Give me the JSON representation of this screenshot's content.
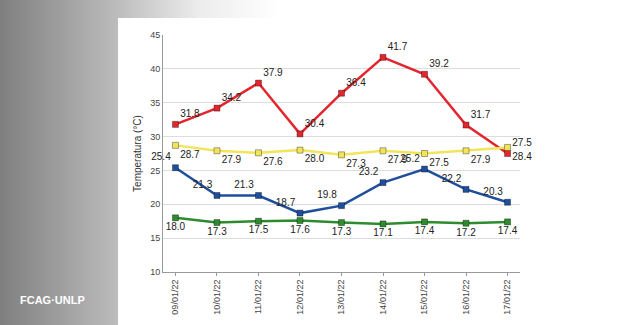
{
  "chart_data": {
    "type": "line",
    "ylabel": "Temperatura (°C)",
    "categories": [
      "09/01/22",
      "10/01/22",
      "11/01/22",
      "12/01/22",
      "13/01/22",
      "14/01/22",
      "15/01/22",
      "16/01/22",
      "17/01/22"
    ],
    "series": [
      {
        "color": "#e3262e",
        "values": [
          31.8,
          34.2,
          37.9,
          30.4,
          36.4,
          41.7,
          39.2,
          31.7,
          27.5
        ]
      },
      {
        "color": "#f2e55c",
        "values": [
          28.7,
          27.9,
          27.6,
          28.0,
          27.3,
          27.9,
          27.5,
          27.9,
          28.4
        ],
        "value_labels": [
          "28.7",
          "27.9",
          "27.6",
          "28.0",
          "27.3",
          "27.9",
          "27.5",
          "27.9",
          "28.4"
        ]
      },
      {
        "color": "#1f4f9c",
        "values": [
          25.4,
          21.3,
          21.3,
          18.7,
          19.8,
          23.2,
          25.2,
          22.2,
          20.3
        ]
      },
      {
        "color": "#2e8b2e",
        "values": [
          18.0,
          17.3,
          17.5,
          17.6,
          17.3,
          17.1,
          17.4,
          17.2,
          17.4
        ],
        "value_labels": [
          "18.0",
          "17.3",
          "17.5",
          "17.6",
          "17.3",
          "17.1",
          "17.4",
          "17.2",
          "17.4"
        ]
      }
    ],
    "ylim": [
      10,
      45
    ],
    "yticks": [
      10,
      15,
      20,
      25,
      30,
      35,
      40,
      45
    ],
    "grid": true,
    "data_labels": true,
    "marker": "square",
    "annotations": [
      "FCAG·UNLP"
    ]
  }
}
